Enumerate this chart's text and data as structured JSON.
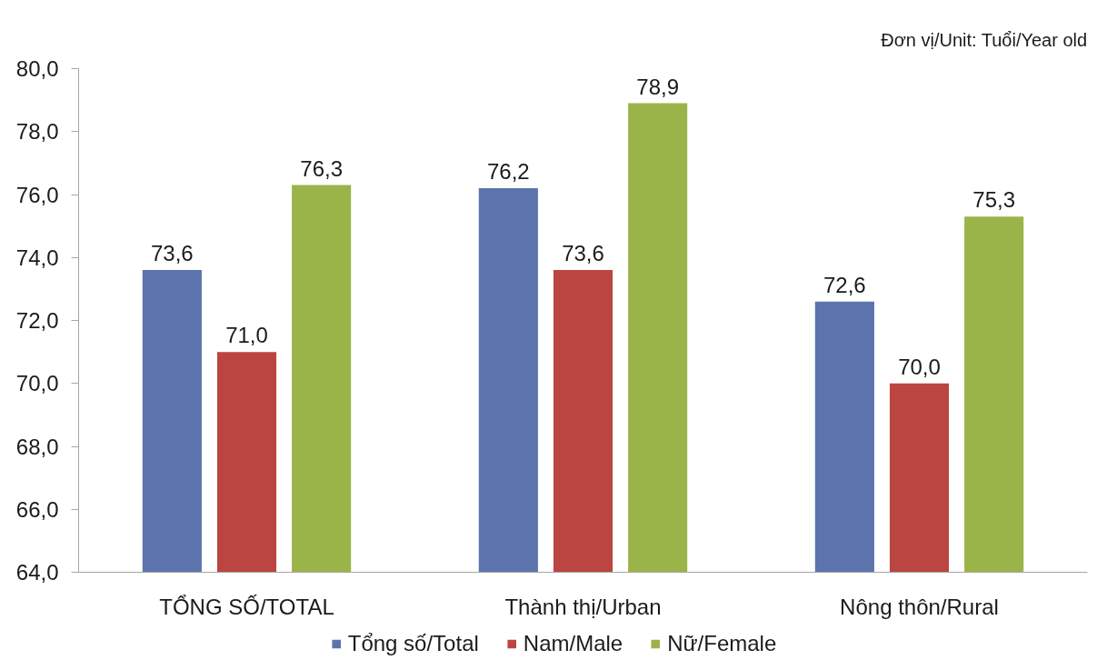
{
  "chart_data": {
    "type": "bar",
    "annotations": [
      "Đơn vị/Unit: Tuổi/Year old"
    ],
    "categories": [
      "TỔNG SỐ/TOTAL",
      "Thành thị/Urban",
      "Nông thôn/Rural"
    ],
    "series": [
      {
        "name": "Tổng số/Total",
        "color": "#5b74ad",
        "values": [
          73.6,
          76.2,
          72.6
        ],
        "value_labels": [
          "73,6",
          "76,2",
          "72,6"
        ]
      },
      {
        "name": "Nam/Male",
        "color": "#bb4541",
        "values": [
          71.0,
          73.6,
          70.0
        ],
        "value_labels": [
          "71,0",
          "73,6",
          "70,0"
        ]
      },
      {
        "name": "Nữ/Female",
        "color": "#9bb44a",
        "values": [
          76.3,
          78.9,
          75.3
        ],
        "value_labels": [
          "76,3",
          "78,9",
          "75,3"
        ]
      }
    ],
    "ylim": [
      64,
      80
    ],
    "yticks": [
      {
        "value": 64,
        "label": "64,0"
      },
      {
        "value": 66,
        "label": "66,0"
      },
      {
        "value": 68,
        "label": "68,0"
      },
      {
        "value": 70,
        "label": "70,0"
      },
      {
        "value": 72,
        "label": "72,0"
      },
      {
        "value": 74,
        "label": "74,0"
      },
      {
        "value": 76,
        "label": "76,0"
      },
      {
        "value": 78,
        "label": "78,0"
      },
      {
        "value": 80,
        "label": "80,0"
      }
    ],
    "grid": false,
    "legend": "bottom"
  }
}
